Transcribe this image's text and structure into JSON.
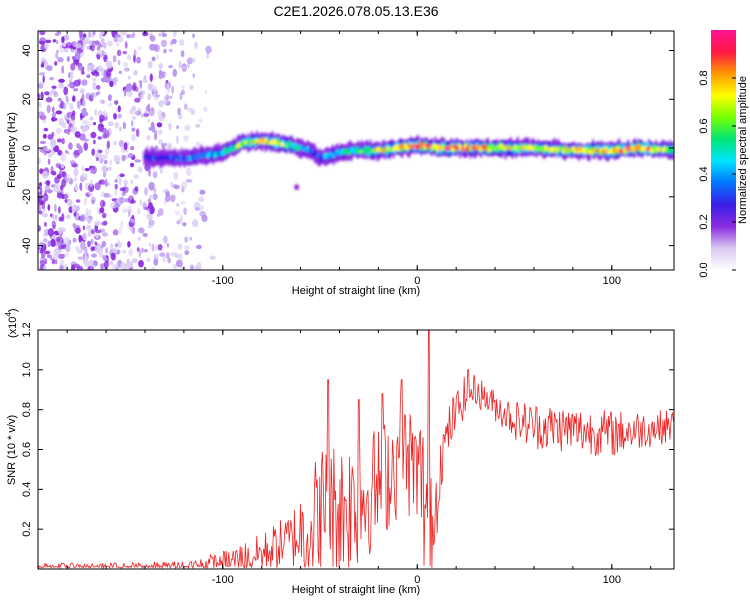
{
  "title": "C2E1.2026.078.05.13.E36",
  "chart_data": [
    {
      "type": "heatmap",
      "name": "spectrogram",
      "xlabel": "Height of straight line (km)",
      "ylabel": "Frequency (Hz)",
      "xlim": [
        -195,
        132
      ],
      "ylim": [
        -50,
        48
      ],
      "xticks": [
        -100,
        0,
        100
      ],
      "yticks": [
        -40,
        -20,
        0,
        20,
        40
      ],
      "colorbar": {
        "label": "Normalized spectral amplitude",
        "range": [
          0,
          1
        ],
        "ticks": [
          "0.0",
          "0.2",
          "0.4",
          "0.6",
          "0.8"
        ],
        "tick_values": [
          0,
          0.2,
          0.4,
          0.6,
          0.8
        ],
        "colors": [
          "#ffffff",
          "#d8c8f0",
          "#8a2be2",
          "#3a1ee6",
          "#0077ff",
          "#00e5ff",
          "#00e676",
          "#76ff03",
          "#ffff00",
          "#ff9800",
          "#ff1744",
          "#ff1493"
        ]
      },
      "trace": {
        "x": [
          -140,
          -120,
          -100,
          -90,
          -80,
          -70,
          -60,
          -55,
          -50,
          -45,
          -40,
          -30,
          -20,
          -10,
          0,
          10,
          20,
          40,
          60,
          80,
          100,
          115,
          132
        ],
        "y": [
          -4,
          -4,
          -2,
          2,
          3,
          2,
          0,
          -1,
          -4,
          -3,
          -2,
          -1,
          -1,
          0,
          1,
          0,
          0,
          0,
          0,
          -1,
          -1,
          0,
          -1
        ],
        "amplitude": [
          0.3,
          0.35,
          0.5,
          0.7,
          0.8,
          0.7,
          0.5,
          0.4,
          0.35,
          0.45,
          0.5,
          0.6,
          0.75,
          0.8,
          0.9,
          0.85,
          0.95,
          0.8,
          0.7,
          0.75,
          0.9,
          0.95,
          0.6
        ]
      },
      "noise_region_x": [
        -195,
        -105
      ]
    },
    {
      "type": "line",
      "name": "snr",
      "xlabel": "Height of straight line (km)",
      "ylabel": "SNR (10 * v/v)",
      "exponent_label": "(x10",
      "exponent": "4",
      "exponent_close": ")",
      "xlim": [
        -195,
        132
      ],
      "ylim": [
        0,
        1.2
      ],
      "xticks": [
        -100,
        0,
        100
      ],
      "yticks": [
        0.2,
        0.4,
        0.6,
        0.8,
        1.0,
        1.2
      ],
      "ytick_labels": [
        "0.2",
        "0.4",
        "0.6",
        "0.8",
        "1.0",
        "1.2"
      ],
      "color": "#ee2222",
      "envelope": {
        "x": [
          -195,
          -160,
          -120,
          -100,
          -80,
          -65,
          -55,
          -48,
          -40,
          -30,
          -20,
          -10,
          -5,
          0,
          5,
          8,
          12,
          18,
          25,
          30,
          40,
          50,
          60,
          80,
          100,
          115,
          132
        ],
        "base": [
          0.01,
          0.01,
          0.01,
          0.03,
          0.08,
          0.15,
          0.22,
          0.3,
          0.3,
          0.35,
          0.42,
          0.55,
          0.55,
          0.5,
          0.3,
          0.2,
          0.55,
          0.75,
          0.88,
          0.9,
          0.82,
          0.75,
          0.72,
          0.7,
          0.68,
          0.7,
          0.72
        ],
        "amp": [
          0.02,
          0.02,
          0.03,
          0.06,
          0.1,
          0.14,
          0.3,
          0.35,
          0.35,
          0.35,
          0.3,
          0.3,
          0.3,
          0.25,
          0.55,
          0.3,
          0.15,
          0.12,
          0.1,
          0.08,
          0.08,
          0.1,
          0.12,
          0.12,
          0.12,
          0.1,
          0.08
        ]
      },
      "peaks": [
        {
          "x": -46,
          "y": 0.95
        },
        {
          "x": -30,
          "y": 0.85
        },
        {
          "x": -18,
          "y": 0.88
        },
        {
          "x": -8,
          "y": 0.95
        },
        {
          "x": 6,
          "y": 1.2
        },
        {
          "x": 26,
          "y": 1.0
        }
      ]
    }
  ]
}
